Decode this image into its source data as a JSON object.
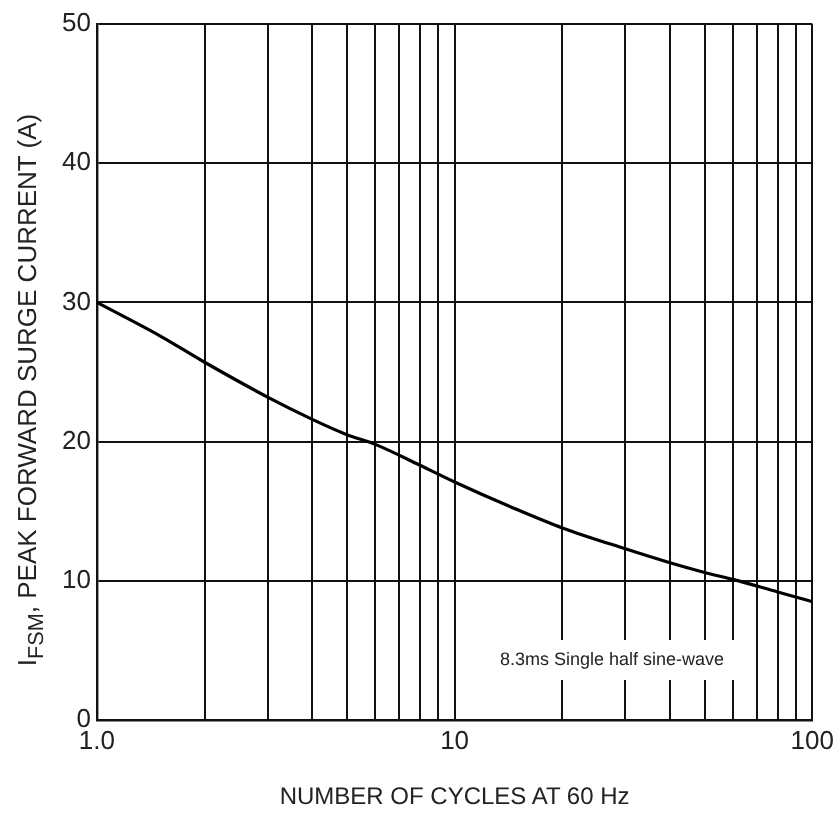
{
  "chart_data": {
    "type": "line",
    "xlabel": "NUMBER OF CYCLES AT 60 Hz",
    "ylabel": "I$_{FSM}$, PEAK FORWARD SURGE CURRENT (A)",
    "log": "x",
    "grid": true,
    "x": [
      1,
      1.5,
      2,
      3,
      4,
      5,
      6,
      8,
      10,
      15,
      20,
      30,
      40,
      50,
      60,
      80,
      100
    ],
    "series": [
      {
        "color": "#000000",
        "values": [
          30,
          27.6,
          25.7,
          23.2,
          21.6,
          20.5,
          19.8,
          18.3,
          17.1,
          15.1,
          13.8,
          12.3,
          11.3,
          10.6,
          10.1,
          9.2,
          8.5
        ]
      }
    ],
    "xlim": [
      1,
      100
    ],
    "xticks": [
      {
        "value": 1,
        "label": "1.0"
      },
      {
        "value": 2,
        "label": null
      },
      {
        "value": 3,
        "label": null
      },
      {
        "value": 4,
        "label": null
      },
      {
        "value": 5,
        "label": null
      },
      {
        "value": 6,
        "label": null
      },
      {
        "value": 7,
        "label": null
      },
      {
        "value": 8,
        "label": null
      },
      {
        "value": 9,
        "label": null
      },
      10,
      {
        "value": 20,
        "label": null
      },
      {
        "value": 30,
        "label": null
      },
      {
        "value": 40,
        "label": null
      },
      {
        "value": 50,
        "label": null
      },
      {
        "value": 60,
        "label": null
      },
      {
        "value": 70,
        "label": null
      },
      {
        "value": 80,
        "label": null
      },
      {
        "value": 90,
        "label": null
      },
      100
    ],
    "ylim": [
      0,
      50
    ],
    "yticks": [
      0,
      10,
      20,
      30,
      40,
      50
    ],
    "annotations": [
      "8.3ms Single half sine-wave"
    ]
  }
}
